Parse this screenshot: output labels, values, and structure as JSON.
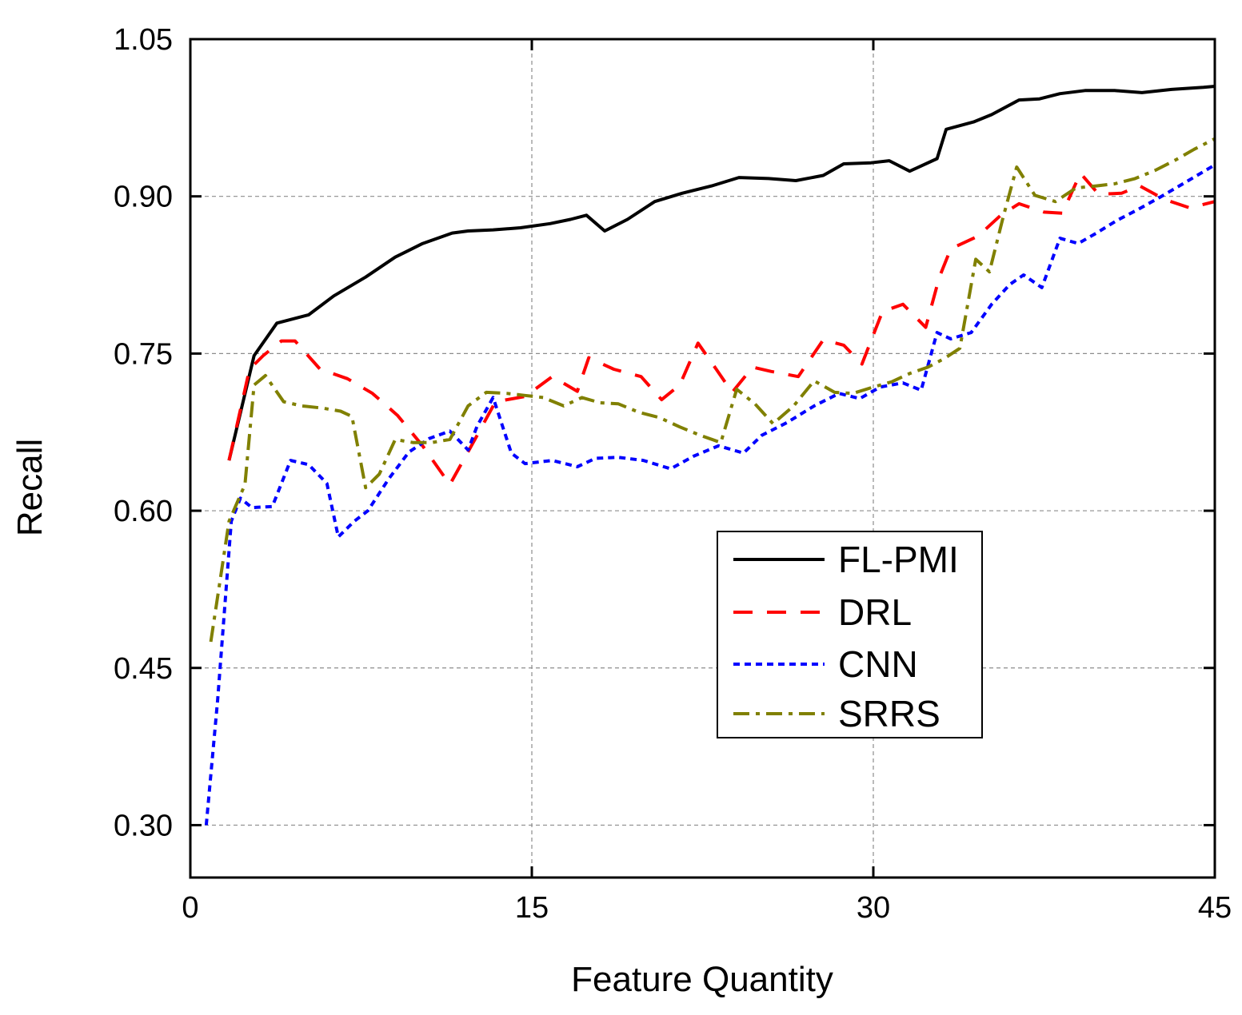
{
  "chart_data": {
    "type": "line",
    "title": "",
    "xlabel": "Feature Quantity",
    "ylabel": "Recall",
    "xlim": [
      0,
      45
    ],
    "ylim": [
      0.25,
      1.05
    ],
    "xticks": [
      0,
      15,
      30,
      45
    ],
    "xtick_labels": [
      "0",
      "15",
      "30",
      "45"
    ],
    "yticks": [
      0.3,
      0.45,
      0.6,
      0.75,
      0.9,
      1.05
    ],
    "ytick_labels": [
      "0.30",
      "0.45",
      "0.60",
      "0.75",
      "0.90",
      "1.05"
    ],
    "grid": true,
    "legend_position": "center-right",
    "series": [
      {
        "name": "FL-PMI",
        "color": "#000000",
        "dash": "solid",
        "x": [
          1.7,
          2.8,
          3.8,
          5.2,
          6.3,
          7.7,
          9,
          10.2,
          11.5,
          12.2,
          13.3,
          14.5,
          15.8,
          16.7,
          17.4,
          18.2,
          19.2,
          20.4,
          21.6,
          22.9,
          24.1,
          25.4,
          26.6,
          27.8,
          28.7,
          29.9,
          30.7,
          31.6,
          32.8,
          33.2,
          34.4,
          35.2,
          36.4,
          37.3,
          38.2,
          39.3,
          40.6,
          41.8,
          43.1,
          44.5,
          45
        ],
        "y": [
          0.648,
          0.748,
          0.779,
          0.787,
          0.805,
          0.823,
          0.842,
          0.855,
          0.865,
          0.867,
          0.868,
          0.87,
          0.874,
          0.878,
          0.882,
          0.867,
          0.878,
          0.895,
          0.903,
          0.91,
          0.918,
          0.917,
          0.915,
          0.92,
          0.931,
          0.932,
          0.934,
          0.924,
          0.936,
          0.964,
          0.971,
          0.978,
          0.992,
          0.993,
          0.998,
          1.001,
          1.001,
          0.999,
          1.002,
          1.004,
          1.005
        ]
      },
      {
        "name": "DRL",
        "color": "#ff0000",
        "dash": "long-dash",
        "x": [
          1.7,
          2.6,
          3.2,
          4.0,
          4.6,
          5.7,
          6.9,
          8.0,
          9.1,
          10.2,
          11.4,
          12.5,
          13.4,
          14.7,
          15.9,
          17.0,
          17.5,
          18.6,
          19.8,
          20.7,
          21.5,
          22.3,
          23.1,
          23.8,
          24.7,
          25.5,
          26.7,
          27.8,
          28.7,
          29.5,
          30.4,
          31.3,
          32.3,
          32.9,
          33.4,
          34.6,
          35.6,
          36.4,
          37.5,
          38.3,
          39.1,
          39.9,
          40.9,
          41.7,
          42.8,
          43.9,
          45
        ],
        "y": [
          0.648,
          0.735,
          0.748,
          0.762,
          0.762,
          0.735,
          0.726,
          0.712,
          0.691,
          0.662,
          0.625,
          0.668,
          0.704,
          0.709,
          0.728,
          0.714,
          0.746,
          0.735,
          0.728,
          0.706,
          0.72,
          0.76,
          0.735,
          0.713,
          0.737,
          0.733,
          0.728,
          0.763,
          0.758,
          0.74,
          0.79,
          0.797,
          0.775,
          0.823,
          0.85,
          0.862,
          0.882,
          0.893,
          0.885,
          0.884,
          0.922,
          0.902,
          0.903,
          0.91,
          0.897,
          0.889,
          0.895
        ]
      },
      {
        "name": "CNN",
        "color": "#0000ff",
        "dash": "dotted",
        "x": [
          0.7,
          1.2,
          1.8,
          2.2,
          2.7,
          3.6,
          4.4,
          5.2,
          6.0,
          6.5,
          7.2,
          7.8,
          8.7,
          9.6,
          10.5,
          11.4,
          12.2,
          12.6,
          13.3,
          14.1,
          14.7,
          15.9,
          17.0,
          17.8,
          18.8,
          19.9,
          21.1,
          22.1,
          23.2,
          24.3,
          25.1,
          26.2,
          27.4,
          28.5,
          29.4,
          30.3,
          31.3,
          32.1,
          32.8,
          33.4,
          34.3,
          35.2,
          36.0,
          36.6,
          37.4,
          38.2,
          39.0,
          39.8,
          40.7,
          41.5,
          42.5,
          43.6,
          45
        ],
        "y": [
          0.3,
          0.42,
          0.59,
          0.612,
          0.603,
          0.604,
          0.648,
          0.644,
          0.626,
          0.575,
          0.59,
          0.6,
          0.63,
          0.656,
          0.669,
          0.676,
          0.658,
          0.681,
          0.708,
          0.655,
          0.645,
          0.648,
          0.642,
          0.65,
          0.651,
          0.648,
          0.64,
          0.652,
          0.662,
          0.655,
          0.672,
          0.684,
          0.7,
          0.712,
          0.707,
          0.718,
          0.722,
          0.715,
          0.77,
          0.764,
          0.77,
          0.797,
          0.816,
          0.825,
          0.813,
          0.86,
          0.855,
          0.865,
          0.877,
          0.886,
          0.898,
          0.912,
          0.93
        ]
      },
      {
        "name": "SRRS",
        "color": "#808000",
        "dash": "dash-dot",
        "x": [
          0.9,
          1.7,
          2.4,
          2.8,
          3.3,
          4.1,
          4.9,
          5.8,
          6.6,
          7.1,
          7.7,
          8.3,
          9.0,
          9.8,
          10.6,
          11.4,
          12.2,
          13.0,
          13.9,
          14.7,
          15.5,
          16.4,
          17.2,
          18.0,
          18.8,
          19.7,
          20.6,
          21.5,
          22.4,
          23.3,
          24.0,
          24.8,
          25.6,
          26.5,
          27.4,
          28.3,
          29.1,
          30.0,
          30.8,
          31.6,
          32.4,
          33.1,
          33.8,
          34.5,
          35.1,
          35.7,
          36.3,
          37.1,
          38.0,
          38.9,
          39.8,
          40.6,
          41.5,
          42.4,
          43.3,
          44.1,
          45
        ],
        "y": [
          0.475,
          0.59,
          0.625,
          0.72,
          0.729,
          0.704,
          0.7,
          0.698,
          0.695,
          0.69,
          0.622,
          0.635,
          0.668,
          0.665,
          0.665,
          0.668,
          0.7,
          0.713,
          0.712,
          0.71,
          0.708,
          0.7,
          0.708,
          0.703,
          0.702,
          0.694,
          0.689,
          0.68,
          0.672,
          0.665,
          0.716,
          0.702,
          0.683,
          0.7,
          0.724,
          0.713,
          0.712,
          0.718,
          0.723,
          0.731,
          0.737,
          0.745,
          0.755,
          0.84,
          0.828,
          0.88,
          0.928,
          0.901,
          0.895,
          0.908,
          0.91,
          0.912,
          0.917,
          0.925,
          0.935,
          0.945,
          0.955
        ]
      }
    ]
  }
}
